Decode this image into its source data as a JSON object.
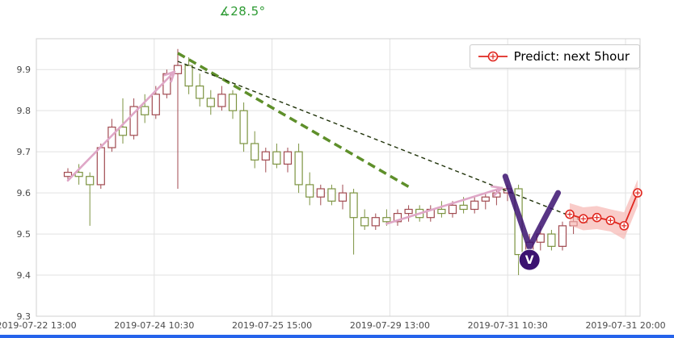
{
  "title": {
    "text": "∡28.5°",
    "color": "#2c9a32"
  },
  "legend": {
    "label": "Predict: next 5hour"
  },
  "chrome": {
    "bottom_bar_color": "#2563eb"
  },
  "chart_data": {
    "type": "candlestick",
    "title": "∡28.5°",
    "xlabel": "",
    "ylabel": "",
    "grid": true,
    "legend_position": "upper right",
    "ylim": [
      9.3,
      9.975
    ],
    "y_ticks": [
      9.3,
      9.4,
      9.5,
      9.6,
      9.7,
      9.8,
      9.9
    ],
    "x_tick_labels": [
      "2019-07-22 13:00",
      "2019-07-24 10:30",
      "2019-07-25 15:00",
      "2019-07-29 13:00",
      "2019-07-31 10:30",
      "2019-07-31 20:00"
    ],
    "candles_ohlc": [
      [
        9.64,
        9.66,
        9.63,
        9.65
      ],
      [
        9.65,
        9.67,
        9.62,
        9.64
      ],
      [
        9.64,
        9.65,
        9.52,
        9.62
      ],
      [
        9.62,
        9.72,
        9.61,
        9.71
      ],
      [
        9.71,
        9.78,
        9.7,
        9.76
      ],
      [
        9.76,
        9.83,
        9.72,
        9.74
      ],
      [
        9.74,
        9.83,
        9.73,
        9.81
      ],
      [
        9.81,
        9.84,
        9.77,
        9.79
      ],
      [
        9.79,
        9.86,
        9.78,
        9.84
      ],
      [
        9.84,
        9.9,
        9.83,
        9.89
      ],
      [
        9.89,
        9.95,
        9.61,
        9.91
      ],
      [
        9.91,
        9.93,
        9.84,
        9.86
      ],
      [
        9.86,
        9.89,
        9.81,
        9.83
      ],
      [
        9.83,
        9.85,
        9.79,
        9.81
      ],
      [
        9.81,
        9.86,
        9.8,
        9.84
      ],
      [
        9.84,
        9.85,
        9.78,
        9.8
      ],
      [
        9.8,
        9.82,
        9.7,
        9.72
      ],
      [
        9.72,
        9.75,
        9.66,
        9.68
      ],
      [
        9.68,
        9.71,
        9.65,
        9.7
      ],
      [
        9.7,
        9.72,
        9.66,
        9.67
      ],
      [
        9.67,
        9.71,
        9.65,
        9.7
      ],
      [
        9.7,
        9.72,
        9.6,
        9.62
      ],
      [
        9.62,
        9.65,
        9.57,
        9.59
      ],
      [
        9.59,
        9.62,
        9.57,
        9.61
      ],
      [
        9.61,
        9.62,
        9.57,
        9.58
      ],
      [
        9.58,
        9.62,
        9.56,
        9.6
      ],
      [
        9.6,
        9.61,
        9.45,
        9.54
      ],
      [
        9.54,
        9.56,
        9.51,
        9.52
      ],
      [
        9.52,
        9.55,
        9.51,
        9.54
      ],
      [
        9.54,
        9.56,
        9.52,
        9.53
      ],
      [
        9.53,
        9.56,
        9.52,
        9.55
      ],
      [
        9.55,
        9.57,
        9.53,
        9.56
      ],
      [
        9.56,
        9.57,
        9.53,
        9.54
      ],
      [
        9.54,
        9.57,
        9.53,
        9.56
      ],
      [
        9.56,
        9.58,
        9.54,
        9.55
      ],
      [
        9.55,
        9.58,
        9.54,
        9.57
      ],
      [
        9.57,
        9.59,
        9.55,
        9.56
      ],
      [
        9.56,
        9.59,
        9.55,
        9.58
      ],
      [
        9.58,
        9.6,
        9.56,
        9.59
      ],
      [
        9.59,
        9.61,
        9.57,
        9.6
      ],
      [
        9.6,
        9.62,
        9.58,
        9.61
      ],
      [
        9.61,
        9.62,
        9.4,
        9.45
      ],
      [
        9.45,
        9.5,
        9.43,
        9.48
      ],
      [
        9.48,
        9.52,
        9.46,
        9.5
      ],
      [
        9.5,
        9.51,
        9.46,
        9.47
      ],
      [
        9.47,
        9.53,
        9.46,
        9.52
      ],
      [
        9.52,
        9.55,
        9.5,
        9.53
      ]
    ],
    "trendlines": [
      {
        "name": "thick-green-dashed",
        "from": [
          10,
          9.94
        ],
        "to": [
          31,
          9.615
        ],
        "color": "#5e8f2a",
        "width": 3.5,
        "dash": "10,6"
      },
      {
        "name": "thin-dark-dashed",
        "from": [
          10,
          9.92
        ],
        "to": [
          47.5,
          9.525
        ],
        "color": "#20330a",
        "width": 1.4,
        "dash": "5,4"
      }
    ],
    "arrows": [
      {
        "from": [
          0,
          9.63
        ],
        "to": [
          9.7,
          9.895
        ]
      },
      {
        "from": [
          29,
          9.525
        ],
        "to": [
          39.5,
          9.612
        ]
      }
    ],
    "v_marker": {
      "label": "V",
      "points": [
        [
          39.8,
          9.64
        ],
        [
          42,
          9.468
        ],
        [
          44.6,
          9.6
        ]
      ],
      "badge_at": [
        42,
        9.437
      ]
    },
    "prediction": {
      "values": [
        9.548,
        9.537,
        9.54,
        9.533,
        9.52,
        9.6
      ],
      "band_upper": [
        9.575,
        9.565,
        9.568,
        9.56,
        9.553,
        9.632
      ],
      "band_lower": [
        9.521,
        9.509,
        9.512,
        9.506,
        9.487,
        9.568
      ]
    },
    "colors": {
      "up": "#a14a50",
      "down": "#7c9340",
      "grid": "#e2e2e2",
      "border": "#d0d0d0",
      "axis_text": "#4a4a4a",
      "arrow": "#dfa7c7",
      "v_marker": "#3b1270",
      "prediction": "#e0271f",
      "prediction_band": "#f6b0ac"
    }
  }
}
